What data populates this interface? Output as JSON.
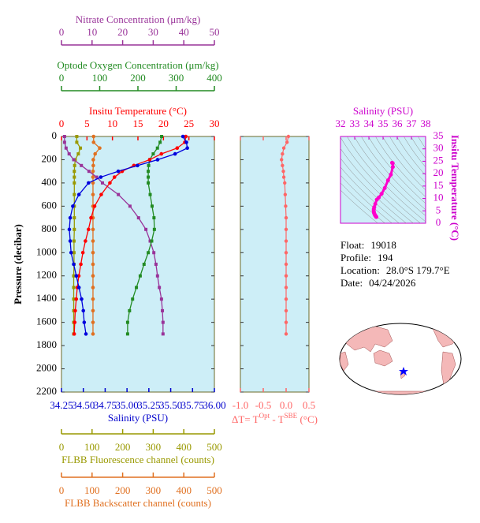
{
  "chart_data": [
    {
      "type": "profile",
      "ylabel": "Pressure (decibar)",
      "ylim": [
        0,
        2200
      ],
      "yticks": [
        0,
        200,
        400,
        600,
        800,
        1000,
        1200,
        1400,
        1600,
        1800,
        2000,
        2200
      ],
      "pressure": [
        0,
        50,
        100,
        150,
        200,
        250,
        300,
        350,
        400,
        500,
        600,
        700,
        800,
        900,
        1000,
        1100,
        1200,
        1300,
        1400,
        1500,
        1600,
        1700
      ],
      "axes": [
        {
          "side": "top",
          "label": "Insitu Temperature (°C)",
          "color": "#ff0000",
          "lim": [
            0,
            30
          ],
          "ticks": [
            0,
            5,
            10,
            15,
            20,
            25,
            30
          ]
        },
        {
          "side": "top",
          "label": "Optode Oxygen Concentration (μm/kg)",
          "color": "#228b22",
          "lim": [
            0,
            400
          ],
          "ticks": [
            0,
            100,
            200,
            300,
            400
          ]
        },
        {
          "side": "top",
          "label": "Nitrate Concentration (μm/kg)",
          "color": "#993399",
          "lim": [
            0,
            50
          ],
          "ticks": [
            0,
            10,
            20,
            30,
            40,
            50
          ]
        },
        {
          "side": "bottom",
          "label": "Salinity (PSU)",
          "color": "#0000cc",
          "lim": [
            34.25,
            36
          ],
          "ticks": [
            34.25,
            {
              "value": 34.5,
              "label": "34.50"
            },
            34.75,
            {
              "value": 35,
              "label": "35.00"
            },
            35.25,
            {
              "value": 35.5,
              "label": "35.50"
            },
            35.75,
            {
              "value": 36,
              "label": "36.00"
            }
          ]
        },
        {
          "side": "bottom",
          "label": "FLBB Fluorescence channel (counts)",
          "color": "#999900",
          "lim": [
            0,
            500
          ],
          "ticks": [
            0,
            100,
            200,
            300,
            400,
            500
          ]
        },
        {
          "side": "bottom",
          "label": "FLBB Backscatter channel (counts)",
          "color": "#e07020",
          "lim": [
            0,
            500
          ],
          "ticks": [
            0,
            100,
            200,
            300,
            400,
            500
          ]
        }
      ],
      "series": [
        {
          "axis": 5,
          "color": "#e07020",
          "marker": "circle",
          "values": [
            105,
            105,
            125,
            110,
            104,
            104,
            103,
            103,
            103,
            103,
            103,
            103,
            103,
            103,
            103,
            103,
            103,
            103,
            103,
            103,
            103,
            103
          ]
        },
        {
          "axis": 4,
          "color": "#999900",
          "marker": "square",
          "values": [
            50,
            50,
            62,
            55,
            45,
            43,
            42,
            42,
            42,
            42,
            42,
            42,
            42,
            41,
            41,
            41,
            40,
            40,
            40,
            40,
            40,
            40
          ]
        },
        {
          "axis": 2,
          "color": "#993399",
          "marker": "square",
          "values": [
            1.0,
            1.0,
            1.5,
            2.5,
            4.0,
            6.5,
            9.0,
            11.5,
            13.4,
            18.6,
            22.4,
            25.2,
            27.6,
            29.0,
            30.2,
            30.9,
            31.4,
            32.0,
            32.7,
            33.0,
            33.2,
            33.2
          ]
        },
        {
          "axis": 1,
          "color": "#228b22",
          "marker": "square",
          "values": [
            262,
            258,
            251,
            240,
            231,
            228,
            227,
            227,
            227,
            232,
            237,
            242,
            243,
            236,
            227,
            216,
            206,
            196,
            186,
            178,
            173,
            173
          ]
        },
        {
          "axis": 0,
          "color": "#ff0000",
          "marker": "circle",
          "values": [
            24.4,
            24.2,
            22.7,
            19.6,
            17.3,
            14.2,
            11.9,
            10.4,
            9.5,
            7.8,
            6.5,
            5.8,
            5.3,
            4.7,
            4.2,
            3.8,
            3.4,
            3.1,
            2.9,
            2.7,
            2.6,
            2.5
          ]
        },
        {
          "axis": 3,
          "color": "#0000dd",
          "marker": "circle",
          "values": [
            35.64,
            35.68,
            35.69,
            35.55,
            35.35,
            35.12,
            34.9,
            34.7,
            34.56,
            34.45,
            34.38,
            34.35,
            34.34,
            34.35,
            34.36,
            34.39,
            34.42,
            34.45,
            34.48,
            34.5,
            34.51,
            34.53
          ]
        }
      ]
    },
    {
      "type": "delta",
      "xlabel_parts": [
        {
          "text": "ΔT= T"
        },
        {
          "text": "Opt",
          "sup": true
        },
        {
          "text": " - T"
        },
        {
          "text": "SBE",
          "sup": true
        },
        {
          "text": " (°C)"
        }
      ],
      "color": "#ff6666",
      "xlim": [
        -1,
        0.5
      ],
      "xticks": [
        {
          "value": -1,
          "label": "-1.0"
        },
        -0.5,
        {
          "value": 0,
          "label": "0.0"
        },
        0.5
      ],
      "ylim": [
        0,
        2200
      ],
      "y": [
        0,
        50,
        100,
        150,
        200,
        250,
        300,
        350,
        400,
        500,
        600,
        700,
        800,
        900,
        1000,
        1100,
        1200,
        1300,
        1400,
        1500,
        1600,
        1700
      ],
      "values": [
        0.05,
        0.02,
        -0.05,
        -0.08,
        -0.1,
        -0.08,
        -0.06,
        -0.05,
        -0.03,
        -0.02,
        -0.01,
        0,
        0,
        0,
        0,
        0,
        0,
        0,
        0,
        0,
        0,
        0
      ]
    },
    {
      "type": "ts",
      "xlabel": "Salinity (PSU)",
      "ylabel": "Insitu Temperature (°C)",
      "color": "#ff00cc",
      "label_color": "#cc00cc",
      "xlim": [
        32,
        38
      ],
      "xticks": [
        32,
        33,
        34,
        35,
        36,
        37,
        38
      ],
      "ylim": [
        0,
        35
      ],
      "yticks": [
        0,
        5,
        10,
        15,
        20,
        25,
        30,
        35
      ],
      "x": [
        35.64,
        35.68,
        35.69,
        35.55,
        35.35,
        35.12,
        34.9,
        34.7,
        34.56,
        34.45,
        34.38,
        34.35,
        34.34,
        34.35,
        34.36,
        34.39,
        34.42,
        34.45,
        34.48,
        34.5,
        34.51,
        34.53
      ],
      "y": [
        24.4,
        24.2,
        22.7,
        19.6,
        17.3,
        14.2,
        11.9,
        10.4,
        9.5,
        7.8,
        6.5,
        5.8,
        5.3,
        4.7,
        4.2,
        3.8,
        3.4,
        3.1,
        2.9,
        2.7,
        2.6,
        2.5
      ]
    }
  ],
  "info": [
    {
      "label": "Float:",
      "value": "19018"
    },
    {
      "label": "Profile:",
      "value": "194"
    },
    {
      "label": "Location:",
      "value": "28.0°S 179.7°E"
    },
    {
      "label": "Date:",
      "value": "04/24/2026"
    }
  ]
}
